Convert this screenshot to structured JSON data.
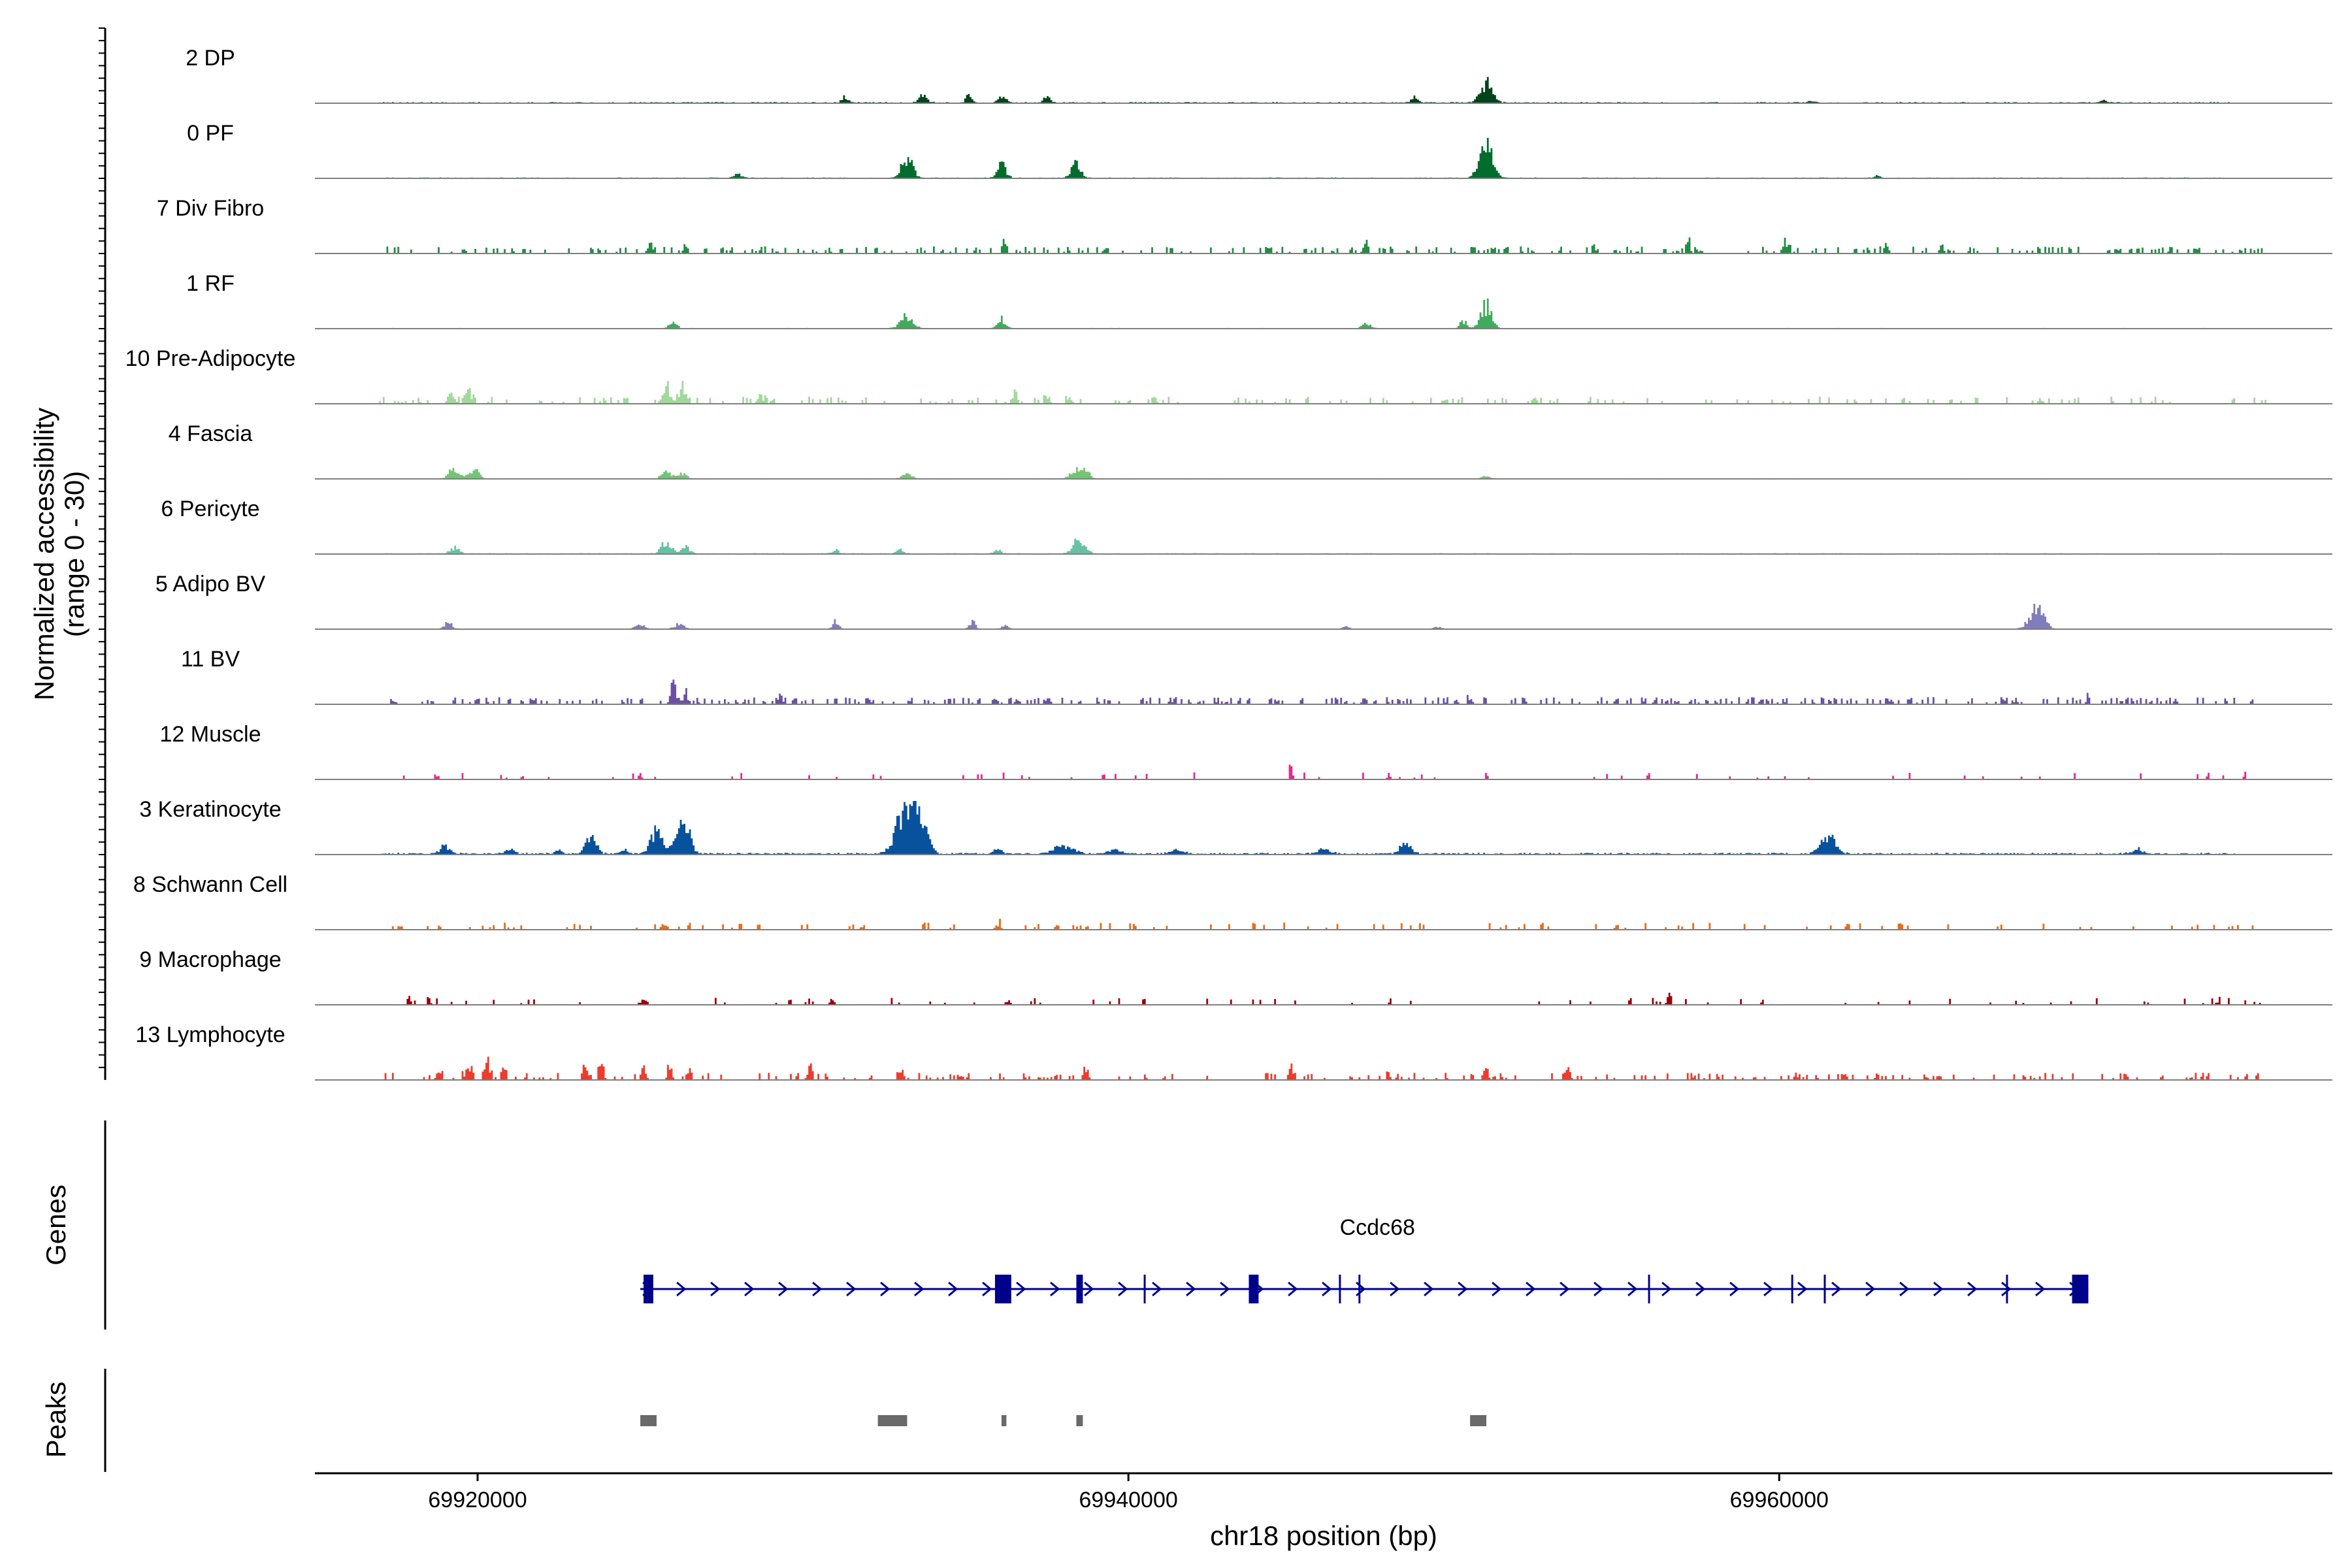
{
  "chart_data": {
    "type": "area",
    "title": "",
    "ylabel": [
      "Normalized accessibility",
      "(range 0 - 30)"
    ],
    "xlabel": "chr18 position (bp)",
    "xlim": [
      69915000,
      69977000
    ],
    "ylim": [
      0,
      30
    ],
    "xticks": [
      69920000,
      69940000,
      69960000
    ],
    "xtick_labels": [
      "69920000",
      "69940000",
      "69960000"
    ],
    "tracks": [
      {
        "label": "2 DP",
        "color": "#00441b",
        "style": "dense",
        "base": 0.35,
        "peaks": [
          [
            69931300,
            3.0,
            120
          ],
          [
            69933700,
            4.5,
            120
          ],
          [
            69935100,
            3.5,
            100
          ],
          [
            69936100,
            4.0,
            120
          ],
          [
            69937500,
            3.0,
            100
          ],
          [
            69948800,
            2.8,
            100
          ],
          [
            69951000,
            11.0,
            180
          ],
          [
            69961000,
            1.2,
            100
          ],
          [
            69970000,
            1.0,
            100
          ]
        ]
      },
      {
        "label": "0 PF",
        "color": "#006d2c",
        "style": "dense",
        "base": 0.25,
        "peaks": [
          [
            69928000,
            2.0,
            130
          ],
          [
            69933200,
            11.0,
            160
          ],
          [
            69936100,
            8.0,
            130
          ],
          [
            69938400,
            7.5,
            140
          ],
          [
            69951000,
            16.0,
            200
          ],
          [
            69963000,
            1.0,
            100
          ]
        ]
      },
      {
        "label": "7 Div Fibro",
        "color": "#238b45",
        "style": "sparse",
        "base": 0.0,
        "density": 0.25,
        "peaks": [
          [
            69925300,
            9.0,
            60
          ],
          [
            69926400,
            5.0,
            70
          ],
          [
            69936200,
            7.0,
            60
          ],
          [
            69947300,
            6.0,
            70
          ],
          [
            69954300,
            5.0,
            60
          ],
          [
            69957200,
            5.0,
            60
          ],
          [
            69960200,
            7.0,
            80
          ],
          [
            69963300,
            6.0,
            60
          ],
          [
            69965000,
            4.0,
            60
          ]
        ]
      },
      {
        "label": "1 RF",
        "color": "#41ab5d",
        "style": "dense",
        "base": 0.2,
        "peaks": [
          [
            69926000,
            3.0,
            120
          ],
          [
            69933200,
            7.0,
            180
          ],
          [
            69936100,
            5.0,
            120
          ],
          [
            69947300,
            3.5,
            110
          ],
          [
            69950300,
            4.0,
            100
          ],
          [
            69951000,
            12.0,
            160
          ]
        ]
      },
      {
        "label": "10 Pre-Adipocyte",
        "color": "#a1d99b",
        "style": "sparse",
        "base": 0.0,
        "density": 0.18,
        "peaks": [
          [
            69919200,
            5.0,
            110
          ],
          [
            69919700,
            6.0,
            110
          ],
          [
            69925800,
            8.0,
            130
          ],
          [
            69926300,
            7.0,
            110
          ],
          [
            69928700,
            5.0,
            80
          ],
          [
            69936500,
            7.0,
            70
          ],
          [
            69937500,
            5.0,
            70
          ],
          [
            69938200,
            4.5,
            60
          ],
          [
            69940800,
            3.0,
            70
          ],
          [
            69949700,
            3.0,
            60
          ],
          [
            69952500,
            3.5,
            60
          ],
          [
            69968000,
            3.0,
            90
          ]
        ]
      },
      {
        "label": "4 Fascia",
        "color": "#74c476",
        "style": "dense",
        "base": 0.2,
        "peaks": [
          [
            69919300,
            6.0,
            160
          ],
          [
            69919900,
            5.0,
            130
          ],
          [
            69925800,
            4.0,
            140
          ],
          [
            69926300,
            3.0,
            120
          ],
          [
            69933200,
            3.0,
            140
          ],
          [
            69938400,
            5.0,
            160
          ],
          [
            69938700,
            4.0,
            120
          ],
          [
            69951000,
            1.5,
            120
          ]
        ]
      },
      {
        "label": "6 Pericyte",
        "color": "#66c2a4",
        "style": "dense",
        "base": 0.25,
        "peaks": [
          [
            69919300,
            3.5,
            140
          ],
          [
            69925800,
            6.0,
            160
          ],
          [
            69926400,
            4.0,
            120
          ],
          [
            69931000,
            2.0,
            100
          ],
          [
            69933000,
            2.0,
            110
          ],
          [
            69936000,
            2.0,
            100
          ],
          [
            69938500,
            8.0,
            180
          ]
        ]
      },
      {
        "label": "5 Adipo BV",
        "color": "#807dba",
        "style": "dense",
        "base": 0.15,
        "peaks": [
          [
            69919100,
            4.0,
            110
          ],
          [
            69925000,
            2.0,
            160
          ],
          [
            69926200,
            2.5,
            140
          ],
          [
            69931000,
            4.0,
            90
          ],
          [
            69935200,
            4.0,
            90
          ],
          [
            69936200,
            2.0,
            100
          ],
          [
            69946700,
            1.5,
            90
          ],
          [
            69949500,
            1.2,
            100
          ],
          [
            69967900,
            11.0,
            220
          ]
        ]
      },
      {
        "label": "11 BV",
        "color": "#6a51a3",
        "style": "sparse",
        "base": 0.0,
        "density": 0.32,
        "peaks": [
          [
            69926000,
            10.0,
            80
          ],
          [
            69926400,
            7.0,
            70
          ],
          [
            69929300,
            5.0,
            60
          ],
          [
            69932000,
            4.0,
            60
          ],
          [
            69941300,
            3.0,
            60
          ],
          [
            69950500,
            4.0,
            60
          ],
          [
            69955000,
            3.0,
            60
          ],
          [
            69964000,
            3.0,
            60
          ],
          [
            69969500,
            3.0,
            60
          ]
        ]
      },
      {
        "label": "12 Muscle",
        "color": "#e7298a",
        "style": "sparse",
        "base": 0.0,
        "density": 0.07,
        "peaks": [
          [
            69925000,
            4.0,
            40
          ],
          [
            69945000,
            6.0,
            50
          ],
          [
            69948000,
            4.0,
            40
          ],
          [
            69951000,
            4.0,
            40
          ],
          [
            69956000,
            4.0,
            40
          ],
          [
            69974300,
            4.0,
            40
          ]
        ]
      },
      {
        "label": "3 Keratinocyte",
        "color": "#08519c",
        "style": "dense",
        "base": 0.5,
        "peaks": [
          [
            69919000,
            4.5,
            150
          ],
          [
            69921000,
            2.5,
            130
          ],
          [
            69922500,
            2.2,
            100
          ],
          [
            69923500,
            10.0,
            150
          ],
          [
            69924500,
            2.0,
            100
          ],
          [
            69925500,
            12.0,
            180
          ],
          [
            69926200,
            17.0,
            170
          ],
          [
            69926500,
            7.0,
            110
          ],
          [
            69933000,
            16.0,
            230
          ],
          [
            69933400,
            27.0,
            170
          ],
          [
            69933800,
            10.0,
            150
          ],
          [
            69936000,
            2.0,
            150
          ],
          [
            69938000,
            4.0,
            300
          ],
          [
            69939600,
            2.0,
            200
          ],
          [
            69941500,
            2.0,
            200
          ],
          [
            69946000,
            2.0,
            200
          ],
          [
            69948500,
            6.0,
            170
          ],
          [
            69961500,
            9.0,
            220
          ],
          [
            69971000,
            3.0,
            150
          ]
        ]
      },
      {
        "label": "8 Schwann Cell",
        "color": "#f16913",
        "style": "sparse",
        "base": 0.0,
        "density": 0.14,
        "peaks": [
          [
            69925700,
            3.0,
            90
          ],
          [
            69936000,
            3.0,
            70
          ],
          [
            69937800,
            2.0,
            80
          ],
          [
            69962100,
            4.0,
            50
          ]
        ]
      },
      {
        "label": "9 Macrophage",
        "color": "#99000d",
        "style": "sparse",
        "base": 0.0,
        "density": 0.08,
        "peaks": [
          [
            69917900,
            4.0,
            50
          ],
          [
            69918500,
            3.5,
            50
          ],
          [
            69925100,
            2.5,
            130
          ],
          [
            69929600,
            3.0,
            60
          ],
          [
            69930900,
            3.0,
            60
          ],
          [
            69936300,
            2.5,
            60
          ],
          [
            69956600,
            4.0,
            60
          ],
          [
            69959500,
            2.0,
            60
          ],
          [
            69973500,
            2.0,
            60
          ]
        ]
      },
      {
        "label": "13 Lymphocyte",
        "color": "#ef3b2c",
        "style": "sparse",
        "base": 0.0,
        "density": 0.22,
        "peaks": [
          [
            69918800,
            5.0,
            70
          ],
          [
            69919700,
            7.0,
            90
          ],
          [
            69920300,
            8.0,
            90
          ],
          [
            69920800,
            6.0,
            70
          ],
          [
            69923300,
            6.0,
            70
          ],
          [
            69923800,
            7.0,
            70
          ],
          [
            69925100,
            6.0,
            70
          ],
          [
            69925900,
            7.0,
            70
          ],
          [
            69926500,
            6.0,
            70
          ],
          [
            69930200,
            6.0,
            60
          ],
          [
            69933000,
            7.0,
            70
          ],
          [
            69938700,
            7.0,
            70
          ],
          [
            69945000,
            11.0,
            60
          ],
          [
            69948000,
            4.0,
            40
          ],
          [
            69951000,
            6.0,
            60
          ],
          [
            69953500,
            11.0,
            70
          ],
          [
            69960500,
            6.0,
            40
          ],
          [
            69963000,
            5.0,
            40
          ]
        ]
      }
    ],
    "genes": {
      "panel_label": "Genes",
      "name": "Ccdc68",
      "strand": "+",
      "start": 69925000,
      "end": 69969500,
      "color": "#00008b",
      "exons": [
        [
          69925100,
          69925400
        ],
        [
          69935900,
          69936400
        ],
        [
          69938400,
          69938600
        ],
        [
          69943700,
          69944000
        ],
        [
          69969000,
          69969500
        ]
      ],
      "markers": [
        69940500,
        69946500,
        69947100,
        69956000,
        69960400,
        69961400,
        69967000
      ]
    },
    "peaks_panel": {
      "panel_label": "Peaks",
      "color": "#696969",
      "regions": [
        [
          69925000,
          69925500
        ],
        [
          69932300,
          69933200
        ],
        [
          69936100,
          69936250
        ],
        [
          69938400,
          69938600
        ],
        [
          69950500,
          69951000
        ]
      ]
    }
  }
}
